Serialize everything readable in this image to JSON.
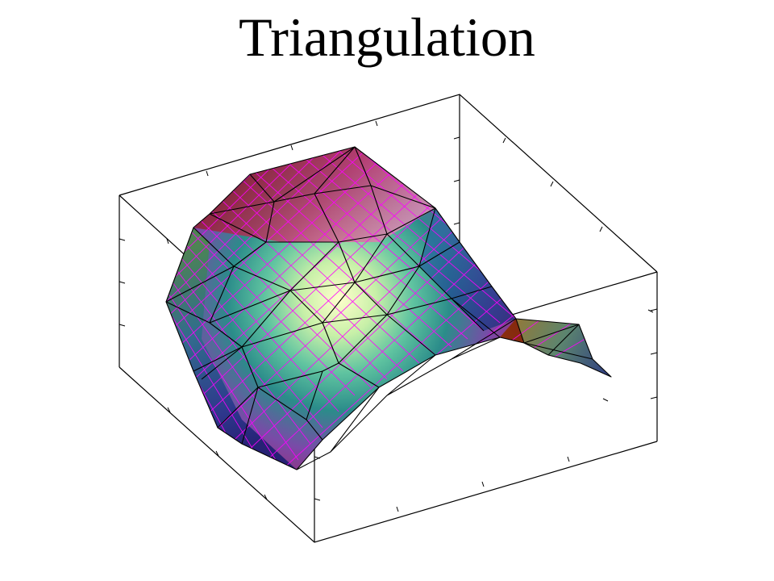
{
  "chart_data": {
    "type": "surface",
    "title": "Triangulation",
    "xlabel": "",
    "ylabel": "",
    "zlabel": "",
    "grid": false,
    "legend": "none",
    "surface_colors": [
      "#1a237e",
      "#1e88e5",
      "#26a69a",
      "#9ccc65",
      "#ffffcc",
      "#fff176",
      "#ff8a65",
      "#c2185b",
      "#7b1fa2",
      "#8d1d10",
      "#6b4a00"
    ],
    "mesh_color": "#ff00ff",
    "edge_color": "#000000"
  }
}
